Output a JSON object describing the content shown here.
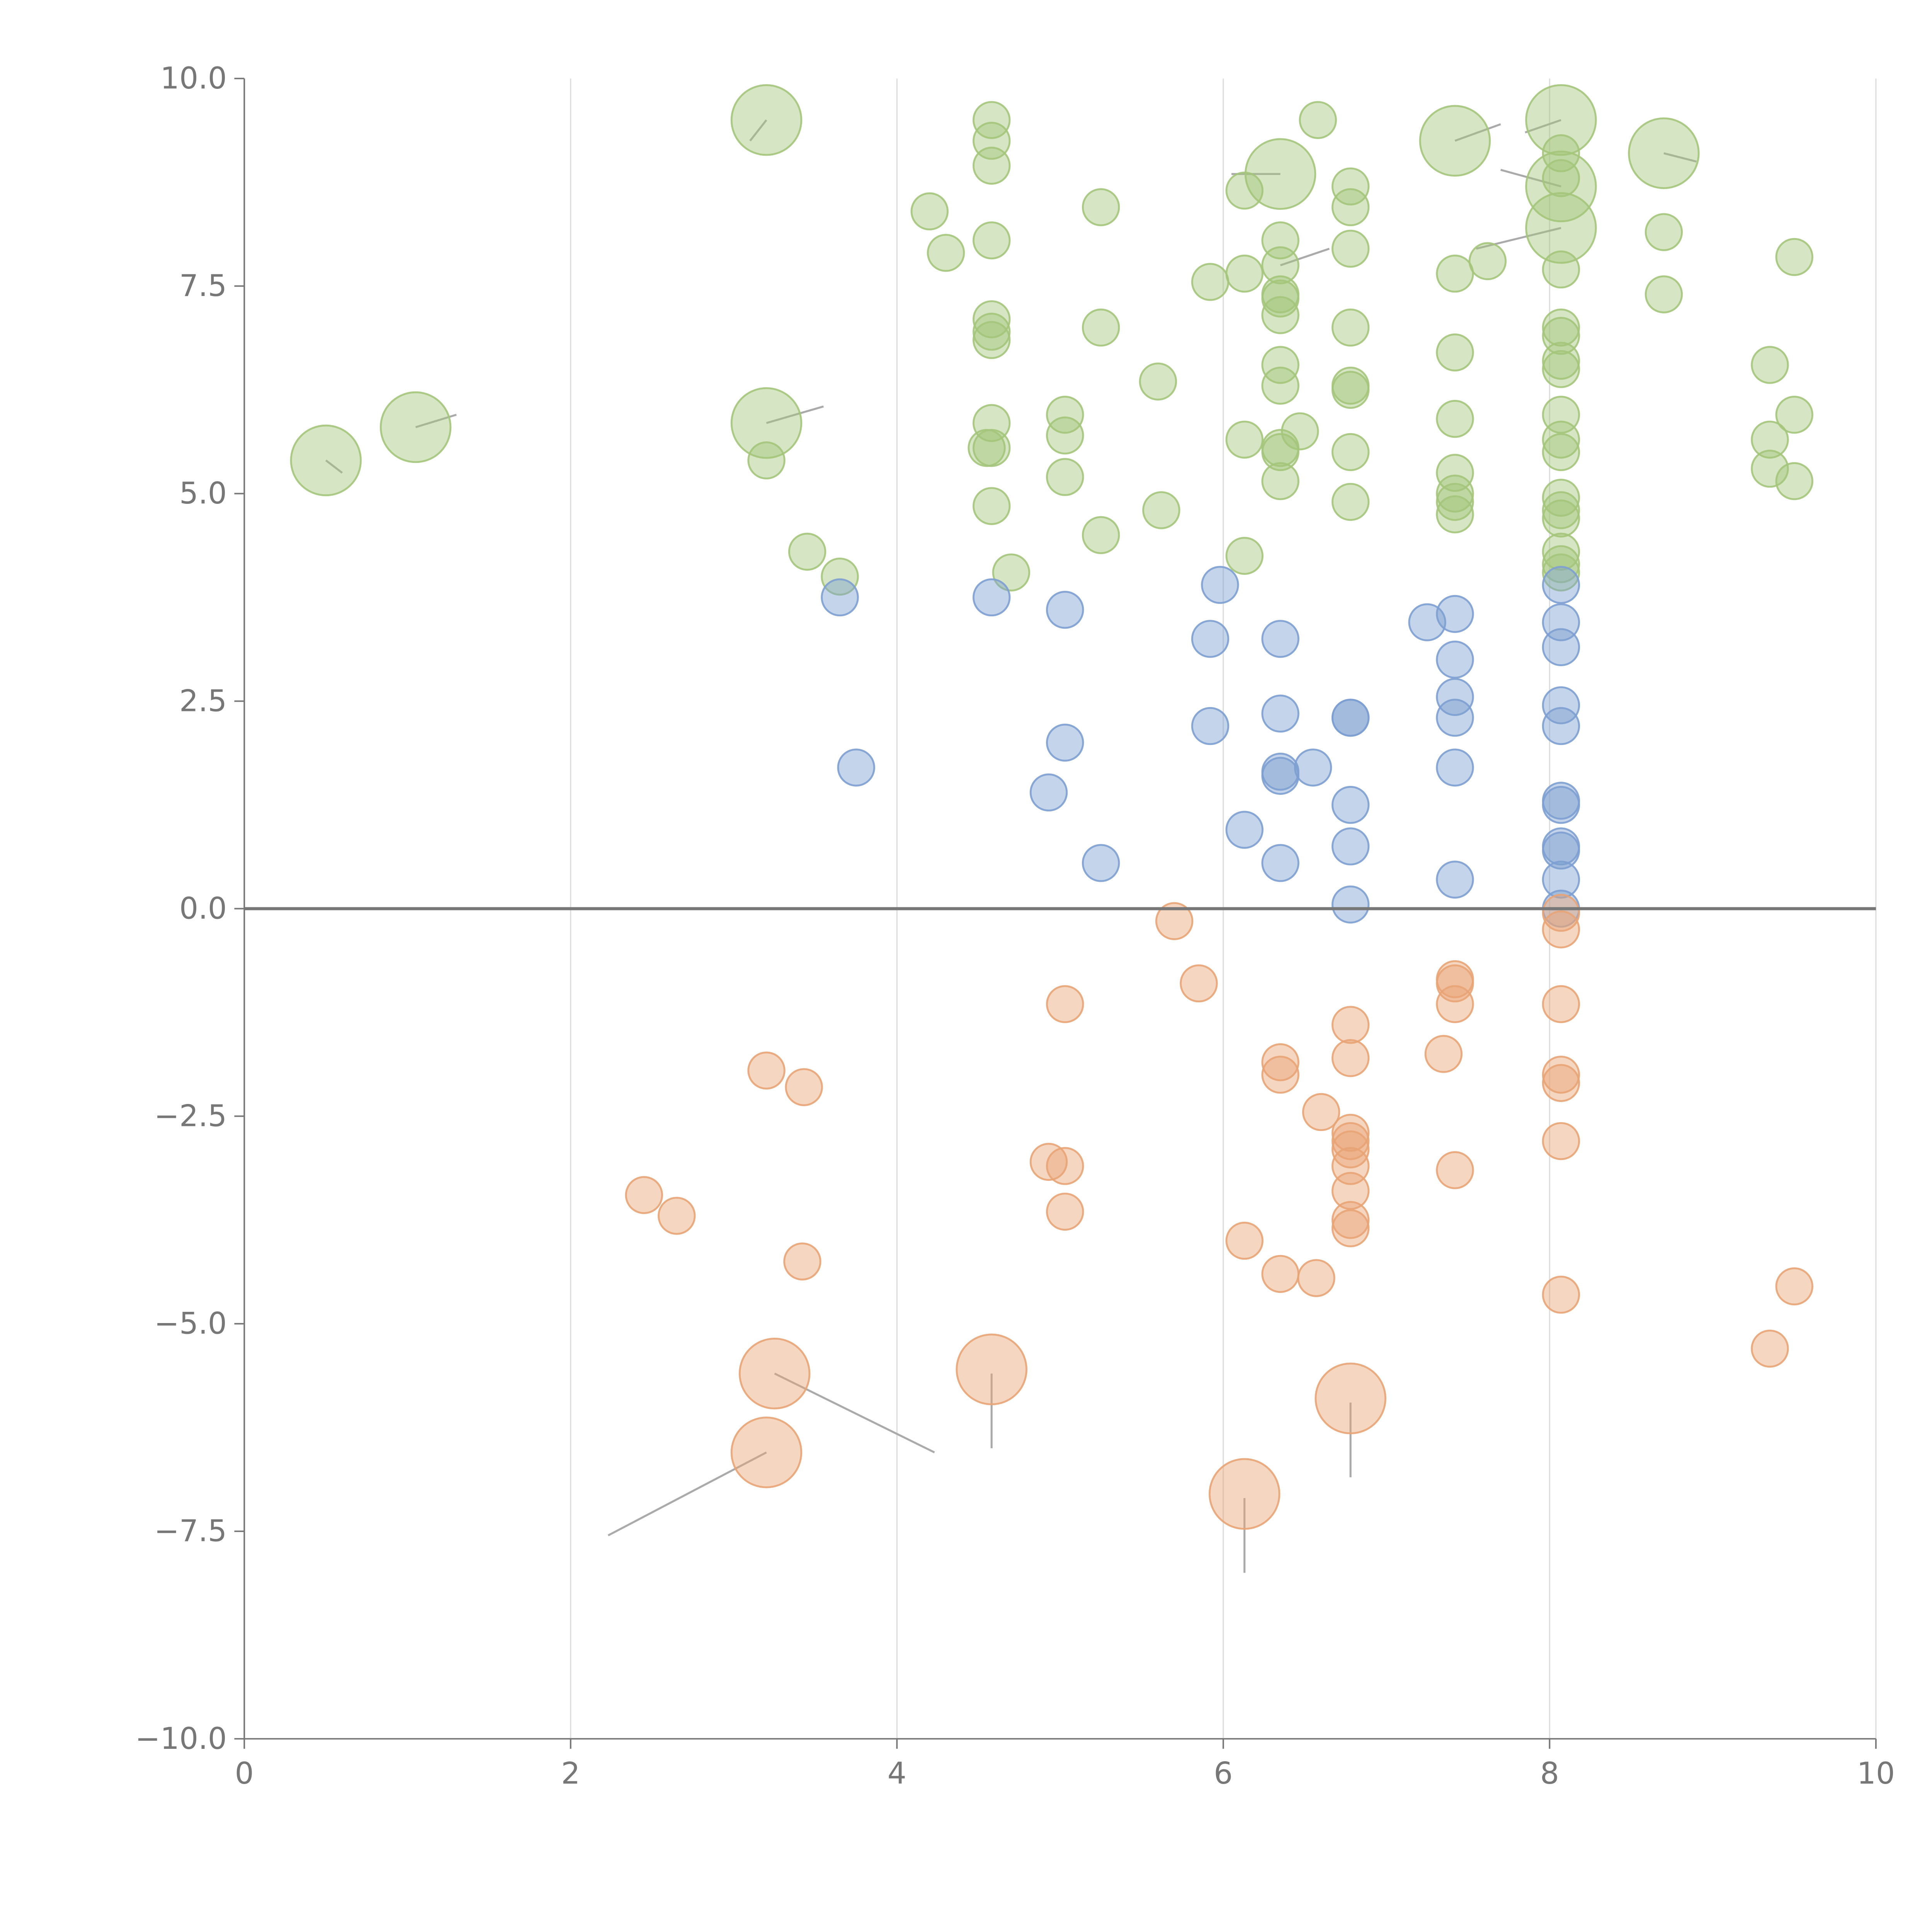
{
  "chart_data": {
    "type": "scatter",
    "title": "",
    "xlabel": "",
    "ylabel": "",
    "xlim": [
      0,
      10
    ],
    "ylim": [
      -10,
      10
    ],
    "x_ticks": [
      "0",
      "2",
      "4",
      "6",
      "8",
      "10"
    ],
    "y_ticks": [
      "10.0",
      "7.5",
      "5.0",
      "2.5",
      "0.0",
      "−2.5",
      "−5.0",
      "−7.5",
      "−10.0"
    ],
    "grid": "vertical",
    "zero_line": true,
    "colors": {
      "high": "#a4c57b",
      "mid": "#7d9fd1",
      "low": "#e8a476",
      "axis": "#777777",
      "grid": "#dddddd"
    },
    "series": [
      {
        "key": "high",
        "points": [
          [
            0.5,
            5.4,
            2
          ],
          [
            1.05,
            5.8,
            2
          ],
          [
            3.2,
            9.5,
            2
          ],
          [
            3.2,
            5.85,
            2
          ],
          [
            3.2,
            5.4,
            1
          ],
          [
            3.45,
            4.3,
            1
          ],
          [
            3.65,
            4.0,
            1
          ],
          [
            4.2,
            8.4,
            1
          ],
          [
            4.3,
            7.9,
            1
          ],
          [
            4.55,
            5.55,
            1
          ],
          [
            4.58,
            9.5,
            1
          ],
          [
            4.58,
            9.25,
            1
          ],
          [
            4.58,
            8.95,
            1
          ],
          [
            4.58,
            8.05,
            1
          ],
          [
            4.58,
            7.1,
            1
          ],
          [
            4.58,
            6.95,
            1
          ],
          [
            4.58,
            6.85,
            1
          ],
          [
            4.58,
            5.85,
            1
          ],
          [
            4.58,
            5.55,
            1
          ],
          [
            4.58,
            4.85,
            1
          ],
          [
            4.7,
            4.05,
            1
          ],
          [
            5.03,
            5.95,
            1
          ],
          [
            5.03,
            5.7,
            1
          ],
          [
            5.03,
            5.2,
            1
          ],
          [
            5.25,
            8.45,
            1
          ],
          [
            5.25,
            7.0,
            1
          ],
          [
            5.25,
            4.5,
            1
          ],
          [
            5.6,
            6.35,
            1
          ],
          [
            5.62,
            4.8,
            1
          ],
          [
            5.92,
            7.55,
            1
          ],
          [
            6.13,
            8.65,
            1
          ],
          [
            6.13,
            7.65,
            1
          ],
          [
            6.13,
            5.65,
            1
          ],
          [
            6.13,
            4.25,
            1
          ],
          [
            6.35,
            8.85,
            2
          ],
          [
            6.35,
            8.05,
            1
          ],
          [
            6.35,
            7.75,
            1
          ],
          [
            6.35,
            7.4,
            1
          ],
          [
            6.35,
            7.35,
            1
          ],
          [
            6.35,
            7.15,
            1
          ],
          [
            6.35,
            6.55,
            1
          ],
          [
            6.35,
            6.3,
            1
          ],
          [
            6.35,
            5.55,
            1
          ],
          [
            6.35,
            5.5,
            1
          ],
          [
            6.35,
            5.15,
            1
          ],
          [
            6.47,
            5.75,
            1
          ],
          [
            6.58,
            9.5,
            1
          ],
          [
            6.78,
            8.7,
            1
          ],
          [
            6.78,
            8.45,
            1
          ],
          [
            6.78,
            7.95,
            1
          ],
          [
            6.78,
            7.0,
            1
          ],
          [
            6.78,
            6.3,
            1
          ],
          [
            6.78,
            6.25,
            1
          ],
          [
            6.78,
            5.5,
            1
          ],
          [
            6.78,
            4.9,
            1
          ],
          [
            7.42,
            9.25,
            2
          ],
          [
            7.42,
            7.65,
            1
          ],
          [
            7.42,
            6.7,
            1
          ],
          [
            7.42,
            5.9,
            1
          ],
          [
            7.42,
            5.25,
            1
          ],
          [
            7.42,
            5.0,
            1
          ],
          [
            7.42,
            4.9,
            1
          ],
          [
            7.42,
            4.75,
            1
          ],
          [
            7.62,
            7.8,
            1
          ],
          [
            8.07,
            9.5,
            2
          ],
          [
            8.07,
            8.7,
            2
          ],
          [
            8.07,
            8.2,
            2
          ],
          [
            8.07,
            9.1,
            1
          ],
          [
            8.07,
            8.8,
            1
          ],
          [
            8.07,
            7.7,
            1
          ],
          [
            8.07,
            7.0,
            1
          ],
          [
            8.07,
            6.9,
            1
          ],
          [
            8.07,
            6.6,
            1
          ],
          [
            8.07,
            6.5,
            1
          ],
          [
            8.07,
            5.95,
            1
          ],
          [
            8.07,
            5.65,
            1
          ],
          [
            8.07,
            5.5,
            1
          ],
          [
            8.07,
            4.95,
            1
          ],
          [
            8.07,
            4.8,
            1
          ],
          [
            8.07,
            4.7,
            1
          ],
          [
            8.07,
            4.3,
            1
          ],
          [
            8.07,
            4.15,
            1
          ],
          [
            8.07,
            4.05,
            1
          ],
          [
            8.7,
            9.1,
            2
          ],
          [
            8.7,
            8.15,
            1
          ],
          [
            8.7,
            7.4,
            1
          ],
          [
            9.35,
            6.55,
            1
          ],
          [
            9.35,
            5.65,
            1
          ],
          [
            9.35,
            5.3,
            1
          ],
          [
            9.5,
            7.85,
            1
          ],
          [
            9.5,
            5.95,
            1
          ],
          [
            9.5,
            5.15,
            1
          ]
        ]
      },
      {
        "key": "mid",
        "points": [
          [
            3.65,
            3.75,
            1
          ],
          [
            3.75,
            1.7,
            1
          ],
          [
            4.58,
            3.75,
            1
          ],
          [
            4.93,
            1.4,
            1
          ],
          [
            5.03,
            3.6,
            1
          ],
          [
            5.03,
            2.0,
            1
          ],
          [
            5.25,
            0.55,
            1
          ],
          [
            5.92,
            3.25,
            1
          ],
          [
            5.92,
            2.2,
            1
          ],
          [
            5.98,
            3.9,
            1
          ],
          [
            6.13,
            0.95,
            1
          ],
          [
            6.35,
            3.25,
            1
          ],
          [
            6.35,
            2.35,
            1
          ],
          [
            6.35,
            1.65,
            1
          ],
          [
            6.35,
            1.6,
            1
          ],
          [
            6.35,
            0.55,
            1
          ],
          [
            6.55,
            1.7,
            1
          ],
          [
            6.78,
            2.3,
            1
          ],
          [
            6.78,
            2.3,
            1
          ],
          [
            6.78,
            1.25,
            1
          ],
          [
            6.78,
            0.75,
            1
          ],
          [
            6.78,
            0.05,
            1
          ],
          [
            7.25,
            3.45,
            1
          ],
          [
            7.42,
            3.55,
            1
          ],
          [
            7.42,
            3.0,
            1
          ],
          [
            7.42,
            2.55,
            1
          ],
          [
            7.42,
            2.3,
            1
          ],
          [
            7.42,
            1.7,
            1
          ],
          [
            7.42,
            0.35,
            1
          ],
          [
            8.07,
            3.9,
            1
          ],
          [
            8.07,
            3.45,
            1
          ],
          [
            8.07,
            3.15,
            1
          ],
          [
            8.07,
            2.45,
            1
          ],
          [
            8.07,
            2.2,
            1
          ],
          [
            8.07,
            1.3,
            1
          ],
          [
            8.07,
            1.25,
            1
          ],
          [
            8.07,
            0.75,
            1
          ],
          [
            8.07,
            0.7,
            1
          ],
          [
            8.07,
            0.35,
            1
          ],
          [
            8.07,
            0.0,
            1
          ]
        ]
      },
      {
        "key": "low",
        "points": [
          [
            2.45,
            -3.45,
            1
          ],
          [
            2.65,
            -3.7,
            1
          ],
          [
            3.2,
            -1.95,
            1
          ],
          [
            3.2,
            -6.55,
            2
          ],
          [
            3.25,
            -5.6,
            2
          ],
          [
            3.42,
            -4.25,
            1
          ],
          [
            3.43,
            -2.15,
            1
          ],
          [
            4.58,
            -5.55,
            2
          ],
          [
            4.93,
            -3.05,
            1
          ],
          [
            5.03,
            -3.1,
            1
          ],
          [
            5.03,
            -3.65,
            1
          ],
          [
            5.03,
            -1.15,
            1
          ],
          [
            5.7,
            -0.15,
            1
          ],
          [
            5.85,
            -0.9,
            1
          ],
          [
            6.13,
            -4.0,
            1
          ],
          [
            6.13,
            -7.05,
            2
          ],
          [
            6.35,
            -1.85,
            1
          ],
          [
            6.35,
            -2.0,
            1
          ],
          [
            6.35,
            -4.4,
            1
          ],
          [
            6.57,
            -4.45,
            1
          ],
          [
            6.6,
            -2.45,
            1
          ],
          [
            6.78,
            -1.4,
            1
          ],
          [
            6.78,
            -1.8,
            1
          ],
          [
            6.78,
            -2.7,
            1
          ],
          [
            6.78,
            -2.8,
            1
          ],
          [
            6.78,
            -2.9,
            1
          ],
          [
            6.78,
            -3.1,
            1
          ],
          [
            6.78,
            -3.4,
            1
          ],
          [
            6.78,
            -3.75,
            1
          ],
          [
            6.78,
            -3.85,
            1
          ],
          [
            6.78,
            -5.9,
            2
          ],
          [
            7.35,
            -1.75,
            1
          ],
          [
            7.42,
            -0.85,
            1
          ],
          [
            7.42,
            -0.9,
            1
          ],
          [
            7.42,
            -1.15,
            1
          ],
          [
            7.42,
            -3.15,
            1
          ],
          [
            8.07,
            -0.05,
            1
          ],
          [
            8.07,
            -0.25,
            1
          ],
          [
            8.07,
            -1.15,
            1
          ],
          [
            8.07,
            -2.0,
            1
          ],
          [
            8.07,
            -2.1,
            1
          ],
          [
            8.07,
            -2.8,
            1
          ],
          [
            8.07,
            -4.65,
            1
          ],
          [
            9.35,
            -5.3,
            1
          ],
          [
            9.5,
            -4.55,
            1
          ]
        ]
      }
    ],
    "leader_lines": [
      [
        3.25,
        -5.6,
        4.23,
        -6.55
      ],
      [
        3.2,
        -6.55,
        2.23,
        -7.55
      ],
      [
        4.58,
        -5.6,
        4.58,
        -6.5
      ],
      [
        6.13,
        -7.1,
        6.13,
        -8.0
      ],
      [
        6.78,
        -5.95,
        6.78,
        -6.85
      ],
      [
        3.2,
        9.5,
        3.1,
        9.25
      ],
      [
        3.2,
        5.85,
        3.55,
        6.05
      ],
      [
        0.5,
        5.4,
        0.6,
        5.25
      ],
      [
        1.05,
        5.8,
        1.3,
        5.95
      ],
      [
        7.42,
        9.25,
        7.7,
        9.45
      ],
      [
        8.07,
        9.5,
        7.85,
        9.35
      ],
      [
        8.07,
        8.7,
        7.7,
        8.9
      ],
      [
        8.07,
        8.2,
        7.55,
        7.95
      ],
      [
        8.7,
        9.1,
        8.9,
        9.0
      ],
      [
        6.35,
        8.85,
        6.05,
        8.85
      ],
      [
        6.35,
        7.75,
        6.65,
        7.95
      ]
    ]
  }
}
